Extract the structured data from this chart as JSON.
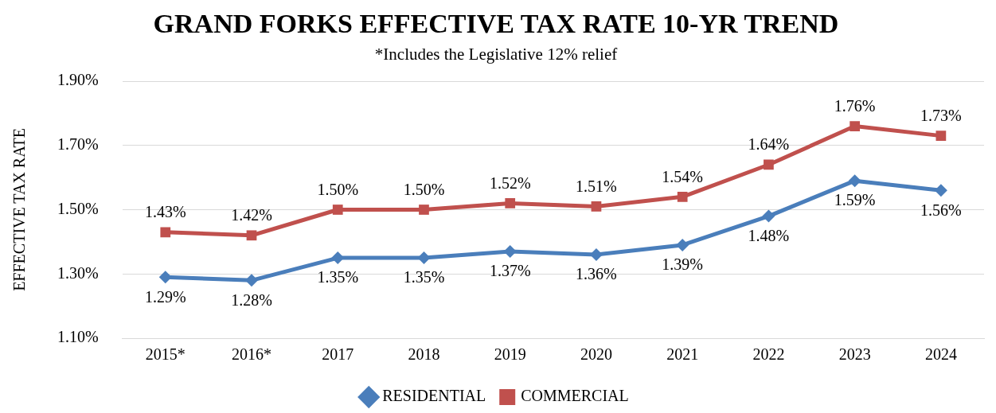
{
  "chart_data": {
    "type": "line",
    "title": "GRAND FORKS EFFECTIVE TAX RATE 10-YR TREND",
    "subtitle": "*Includes the Legislative 12% relief",
    "ylabel": "EFFECTIVE TAX RATE",
    "categories": [
      "2015*",
      "2016*",
      "2017",
      "2018",
      "2019",
      "2020",
      "2021",
      "2022",
      "2023",
      "2024"
    ],
    "series": [
      {
        "name": "RESIDENTIAL",
        "color": "#4a7ebb",
        "marker": "diamond",
        "values": [
          1.29,
          1.28,
          1.35,
          1.35,
          1.37,
          1.36,
          1.39,
          1.48,
          1.59,
          1.56
        ],
        "value_labels": [
          "1.29%",
          "1.28%",
          "1.35%",
          "1.35%",
          "1.37%",
          "1.36%",
          "1.39%",
          "1.48%",
          "1.59%",
          "1.56%"
        ]
      },
      {
        "name": "COMMERCIAL",
        "color": "#c0504d",
        "marker": "square",
        "values": [
          1.43,
          1.42,
          1.5,
          1.5,
          1.52,
          1.51,
          1.54,
          1.64,
          1.76,
          1.73
        ],
        "value_labels": [
          "1.43%",
          "1.42%",
          "1.50%",
          "1.50%",
          "1.52%",
          "1.51%",
          "1.54%",
          "1.64%",
          "1.76%",
          "1.73%"
        ]
      }
    ],
    "ylim": [
      1.1,
      1.9
    ],
    "yticks": [
      {
        "value": 1.1,
        "label": "1.10%"
      },
      {
        "value": 1.3,
        "label": "1.30%"
      },
      {
        "value": 1.5,
        "label": "1.50%"
      },
      {
        "value": 1.7,
        "label": "1.70%"
      },
      {
        "value": 1.9,
        "label": "1.90%"
      }
    ],
    "grid": "y",
    "legend": "bottom",
    "line_style": "solid"
  }
}
